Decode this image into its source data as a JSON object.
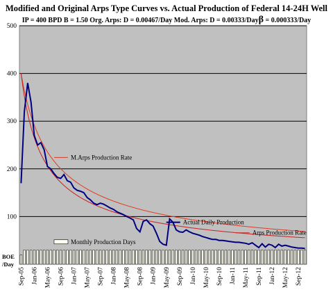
{
  "header": {
    "title": "Modified and Original Arps Type Curves vs. Actual Production of Federal 14-24H Well",
    "subtitle_main": "IP = 400 BPD B = 1.50  Org. Arps: D = 0.00467/Day  Mod. Arps: D = 0.00333/Day",
    "subtitle_beta_symbol": "β",
    "subtitle_beta": " = 0.000333/Day"
  },
  "colors": {
    "plot_bg": "#c0c0c0",
    "actual": "#000080",
    "mod_arps": "#e03c20",
    "arps": "#c82020",
    "days_bar": "#fffff0"
  },
  "chart_data": {
    "type": "line",
    "ylim": [
      0,
      500
    ],
    "yticks": [
      100,
      200,
      300,
      400,
      500
    ],
    "ylabel_line1": "BOE",
    "ylabel_line2": "/Day",
    "x_tick_labels": [
      "Sep-05",
      "Jan-06",
      "May-06",
      "Sep-06",
      "Jan-07",
      "May-07",
      "Sep-07",
      "Jan-08",
      "May-08",
      "Sep-08",
      "Jan-09",
      "May-09",
      "Sep-09",
      "Jan-10",
      "May-10",
      "Sep-10",
      "Jan-11",
      "May-11",
      "Sep-11",
      "Jan-12",
      "May-12",
      "Sep-12"
    ],
    "month_count": 87,
    "grid": "horizontal",
    "series": [
      {
        "name": "Actual Daily Production",
        "values": [
          170,
          320,
          380,
          340,
          270,
          250,
          255,
          240,
          205,
          200,
          190,
          182,
          180,
          188,
          175,
          172,
          160,
          155,
          153,
          150,
          140,
          135,
          128,
          125,
          128,
          126,
          122,
          118,
          115,
          110,
          107,
          104,
          100,
          97,
          93,
          75,
          68,
          90,
          93,
          85,
          80,
          65,
          48,
          42,
          40,
          95,
          88,
          72,
          68,
          67,
          72,
          68,
          65,
          63,
          61,
          58,
          56,
          54,
          52,
          52,
          50,
          50,
          49,
          48,
          47,
          46,
          46,
          45,
          44,
          42,
          45,
          40,
          35,
          43,
          36,
          42,
          40,
          35,
          42,
          38,
          40,
          38,
          36,
          35,
          34,
          34,
          33
        ],
        "legend_label_x_month": 44,
        "legend_label_value": 88
      },
      {
        "name": "M.Arps Production Rate",
        "ip": 400,
        "b": 1.5,
        "d": 0.00333,
        "beta": 0.000333,
        "legend_label_x_month": 10,
        "legend_label_value": 224
      },
      {
        "name": "Arps Production Rate",
        "ip": 400,
        "b": 1.5,
        "d": 0.00467,
        "legend_label_x_month": 65,
        "legend_label_value": 66
      },
      {
        "name": "Monthly Production Days",
        "type": "bar",
        "value": 30,
        "first_value": 20,
        "legend_label_x_month": 10,
        "legend_label_value": 47
      }
    ]
  }
}
